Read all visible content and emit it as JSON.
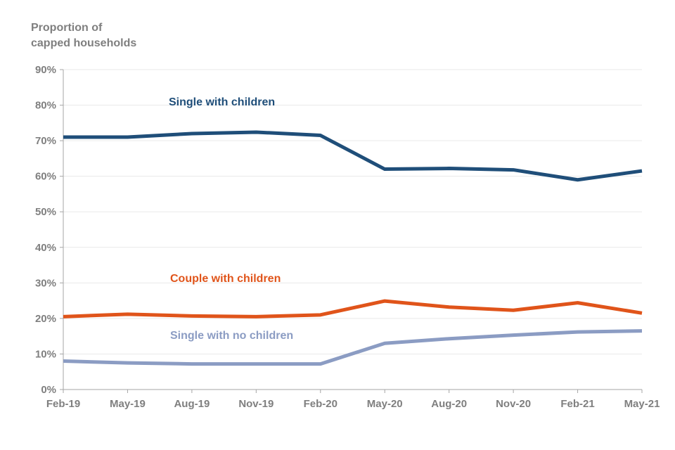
{
  "chart": {
    "title": "Proportion of\ncapped households"
  },
  "colors": {
    "axis": "#a6a6a6",
    "grid": "#e9e9e9",
    "text": "#7f7f7f",
    "background": "#ffffff"
  },
  "chart_data": {
    "type": "line",
    "title": "Proportion of capped households",
    "xlabel": "",
    "ylabel": "Proportion of capped households",
    "ylim": [
      0,
      90
    ],
    "ytick_step": 10,
    "ytick_labels": [
      "0%",
      "10%",
      "20%",
      "30%",
      "40%",
      "50%",
      "60%",
      "70%",
      "80%",
      "90%"
    ],
    "grid": true,
    "legend_position": "inline-labels-on-chart",
    "categories": [
      "Feb-19",
      "May-19",
      "Aug-19",
      "Nov-19",
      "Feb-20",
      "May-20",
      "Aug-20",
      "Nov-20",
      "Feb-21",
      "May-21"
    ],
    "series": [
      {
        "name": "Single with children",
        "color": "#1f4e79",
        "values": [
          71,
          71,
          72,
          72.4,
          71.5,
          62,
          62.2,
          61.8,
          59,
          61.5
        ]
      },
      {
        "name": "Couple with children",
        "color": "#e0541a",
        "values": [
          20.5,
          21.2,
          20.7,
          20.5,
          21,
          24.9,
          23.2,
          22.3,
          24.4,
          21.5
        ]
      },
      {
        "name": "Single with no children",
        "color": "#8b9cc3",
        "values": [
          8,
          7.5,
          7.2,
          7.2,
          7.2,
          13,
          14.3,
          15.3,
          16.2,
          16.5
        ]
      }
    ]
  }
}
